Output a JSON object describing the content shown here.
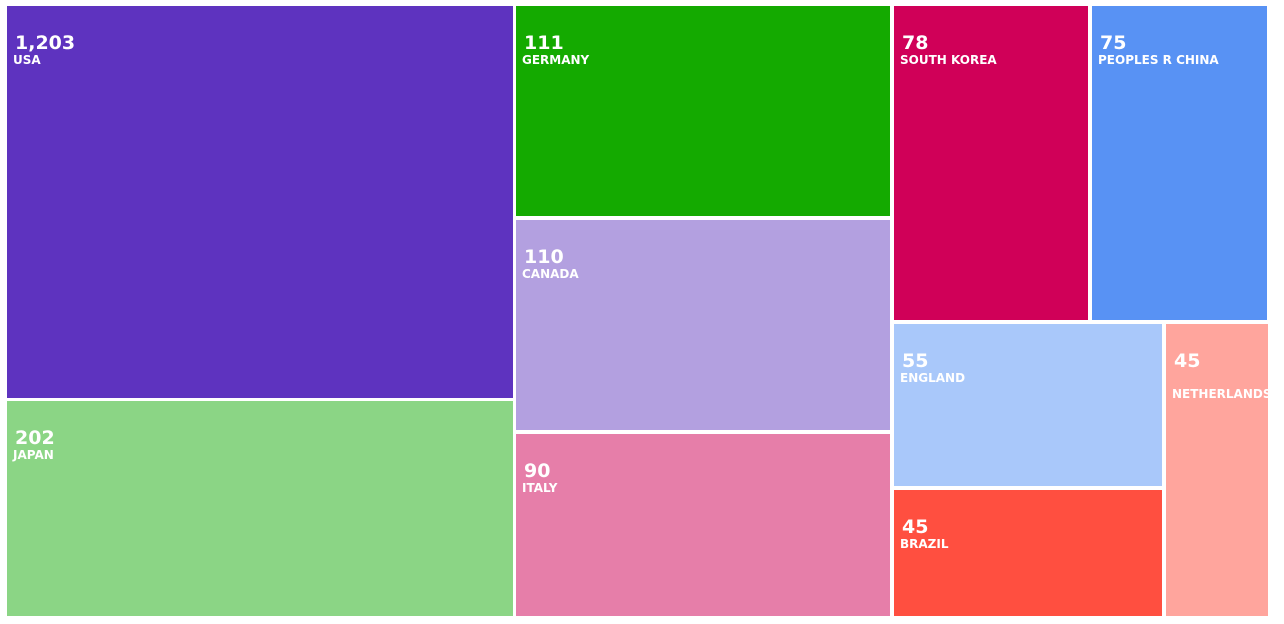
{
  "chart_data": {
    "type": "treemap",
    "categories": [
      "USA",
      "JAPAN",
      "GERMANY",
      "CANADA",
      "ITALY",
      "SOUTH KOREA",
      "PEOPLES R CHINA",
      "ENGLAND",
      "BRAZIL",
      "NETHERLANDS"
    ],
    "values": [
      1203,
      202,
      111,
      110,
      90,
      78,
      75,
      55,
      45,
      45
    ],
    "value_labels": [
      "1,203",
      "202",
      "111",
      "110",
      "90",
      "78",
      "75",
      "55",
      "45",
      "45"
    ],
    "colors": [
      "#5e33bf",
      "#8bd585",
      "#14aa00",
      "#b3a0e0",
      "#e67ea9",
      "#d00058",
      "#5892f4",
      "#a9c8fa",
      "#ff4f40",
      "#ffa59d"
    ]
  }
}
